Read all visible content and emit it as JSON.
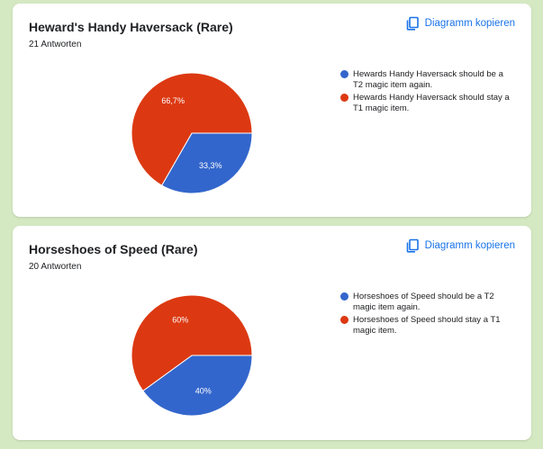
{
  "colors": {
    "series_1": "#3366cc",
    "series_2": "#dc3912",
    "accent": "#1a73e8"
  },
  "cards": [
    {
      "title": "Heward's Handy Haversack (Rare)",
      "responses": "21 Antworten",
      "copy_label": "Diagramm kopieren",
      "copy_icon": "copy-icon",
      "legend": [
        "Hewards Handy Haversack should be a T2 magic item again.",
        "Hewards Handy Haversack should stay a T1 magic item."
      ],
      "labels": [
        "33,3%",
        "66,7%"
      ]
    },
    {
      "title": "Horseshoes of Speed (Rare)",
      "responses": "20 Antworten",
      "copy_label": "Diagramm kopieren",
      "copy_icon": "copy-icon",
      "legend": [
        "Horseshoes of Speed should be a T2 magic item again.",
        "Horseshoes of Speed should stay a T1 magic item."
      ],
      "labels": [
        "40%",
        "60%"
      ]
    }
  ],
  "chart_data": [
    {
      "type": "pie",
      "categories": [
        "Hewards Handy Haversack should be a T2 magic item again.",
        "Hewards Handy Haversack should stay a T1 magic item."
      ],
      "values": [
        33.3,
        66.7
      ]
    },
    {
      "type": "pie",
      "categories": [
        "Horseshoes of Speed should be a T2 magic item again.",
        "Horseshoes of Speed should stay a T1 magic item."
      ],
      "values": [
        40,
        60
      ]
    }
  ]
}
